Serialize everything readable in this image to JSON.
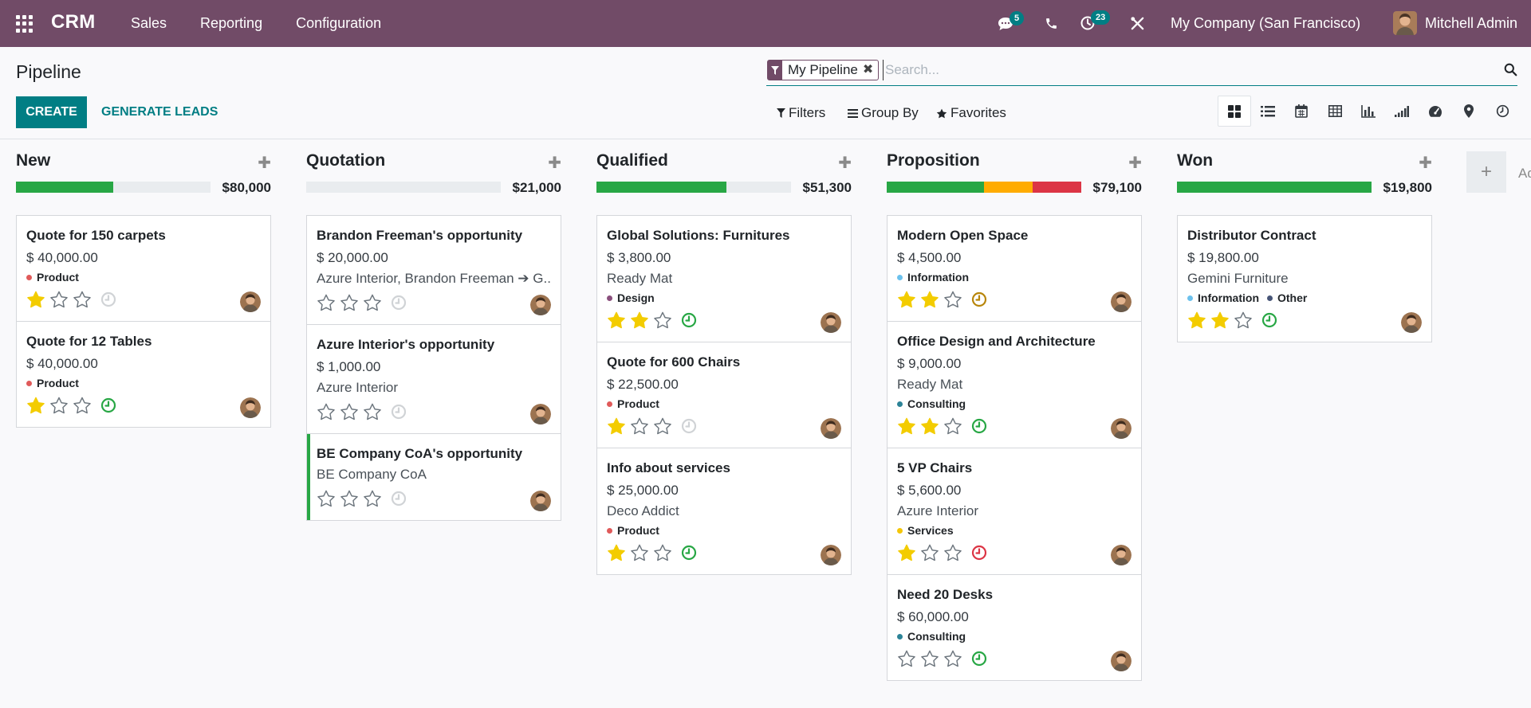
{
  "navbar": {
    "brand": "CRM",
    "menu": [
      "Sales",
      "Reporting",
      "Configuration"
    ],
    "messages_count": "5",
    "activities_count": "23",
    "company": "My Company (San Francisco)",
    "user": "Mitchell Admin"
  },
  "control": {
    "title": "Pipeline",
    "create_label": "CREATE",
    "generate_label": "GENERATE LEADS",
    "facet_label": "My Pipeline",
    "search_placeholder": "Search...",
    "filters_label": "Filters",
    "groupby_label": "Group By",
    "favorites_label": "Favorites"
  },
  "colors": {
    "primary": "#714b67",
    "accent": "#017e84",
    "progress_green": "#28a745",
    "progress_orange": "#ffac00",
    "progress_red": "#dc3545",
    "star_gold": "#f3cc00",
    "activity_green": "#28a745",
    "activity_red": "#dc3545",
    "activity_brown": "#b8860b"
  },
  "columns": [
    {
      "title": "New",
      "total": "$80,000",
      "progress": {
        "green": 0.5,
        "orange": 0,
        "red": 0
      },
      "cards": [
        {
          "title": "Quote for 150 carpets",
          "amount": "$ 40,000.00",
          "partner": "",
          "tags": [
            {
              "label": "Product",
              "color": "#e05a5a"
            }
          ],
          "stars": 1,
          "activity": "none"
        },
        {
          "title": "Quote for 12 Tables",
          "amount": "$ 40,000.00",
          "partner": "",
          "tags": [
            {
              "label": "Product",
              "color": "#e05a5a"
            }
          ],
          "stars": 1,
          "activity": "planned"
        }
      ]
    },
    {
      "title": "Quotation",
      "total": "$21,000",
      "progress": {
        "green": 0,
        "orange": 0,
        "red": 0
      },
      "cards": [
        {
          "title": "Brandon Freeman's opportunity",
          "amount": "$ 20,000.00",
          "partner": "Azure Interior, Brandon Freeman ➔ G...",
          "tags": [],
          "stars": 0,
          "activity": "none"
        },
        {
          "title": "Azure Interior's opportunity",
          "amount": "$ 1,000.00",
          "partner": "Azure Interior",
          "tags": [],
          "stars": 0,
          "activity": "none"
        },
        {
          "title": "BE Company CoA's opportunity",
          "amount": "",
          "partner": "BE Company CoA",
          "tags": [],
          "stars": 0,
          "activity": "none",
          "accent": true
        }
      ]
    },
    {
      "title": "Qualified",
      "total": "$51,300",
      "progress": {
        "green": 0.67,
        "orange": 0,
        "red": 0
      },
      "cards": [
        {
          "title": "Global Solutions: Furnitures",
          "amount": "$ 3,800.00",
          "partner": "Ready Mat",
          "tags": [
            {
              "label": "Design",
              "color": "#8a4f7d"
            }
          ],
          "stars": 2,
          "activity": "planned"
        },
        {
          "title": "Quote for 600 Chairs",
          "amount": "$ 22,500.00",
          "partner": "",
          "tags": [
            {
              "label": "Product",
              "color": "#e05a5a"
            }
          ],
          "stars": 1,
          "activity": "none"
        },
        {
          "title": "Info about services",
          "amount": "$ 25,000.00",
          "partner": "Deco Addict",
          "tags": [
            {
              "label": "Product",
              "color": "#e05a5a"
            }
          ],
          "stars": 1,
          "activity": "planned"
        }
      ]
    },
    {
      "title": "Proposition",
      "total": "$79,100",
      "progress": {
        "green": 0.5,
        "orange": 0.25,
        "red": 0.25
      },
      "cards": [
        {
          "title": "Modern Open Space",
          "amount": "$ 4,500.00",
          "partner": "",
          "tags": [
            {
              "label": "Information",
              "color": "#6cc1ed"
            }
          ],
          "stars": 2,
          "activity": "today"
        },
        {
          "title": "Office Design and Architecture",
          "amount": "$ 9,000.00",
          "partner": "Ready Mat",
          "tags": [
            {
              "label": "Consulting",
              "color": "#2c8397"
            }
          ],
          "stars": 2,
          "activity": "planned"
        },
        {
          "title": "5 VP Chairs",
          "amount": "$ 5,600.00",
          "partner": "Azure Interior",
          "tags": [
            {
              "label": "Services",
              "color": "#f4c609"
            }
          ],
          "stars": 1,
          "activity": "overdue"
        },
        {
          "title": "Need 20 Desks",
          "amount": "$ 60,000.00",
          "partner": "",
          "tags": [
            {
              "label": "Consulting",
              "color": "#2c8397"
            }
          ],
          "stars": 0,
          "activity": "planned"
        }
      ]
    },
    {
      "title": "Won",
      "total": "$19,800",
      "progress": {
        "green": 1,
        "orange": 0,
        "red": 0
      },
      "cards": [
        {
          "title": "Distributor Contract",
          "amount": "$ 19,800.00",
          "partner": "Gemini Furniture",
          "tags": [
            {
              "label": "Information",
              "color": "#6cc1ed"
            },
            {
              "label": "Other",
              "color": "#475577"
            }
          ],
          "stars": 2,
          "activity": "planned"
        }
      ]
    }
  ],
  "add_column_label": "Add a Column"
}
